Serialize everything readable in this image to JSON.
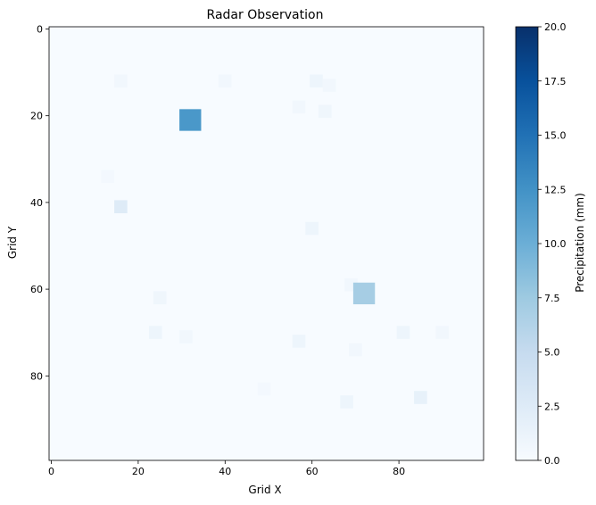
{
  "chart_data": {
    "type": "heatmap",
    "title": "Radar Observation",
    "xlabel": "Grid X",
    "ylabel": "Grid Y",
    "grid_size": [
      100,
      100
    ],
    "xlim": [
      0,
      100
    ],
    "ylim": [
      100,
      0
    ],
    "x_ticks": [
      0,
      20,
      40,
      60,
      80
    ],
    "y_ticks": [
      0,
      20,
      40,
      60,
      80
    ],
    "colormap": "Blues",
    "background_value": 0.0,
    "colorbar": {
      "label": "Precipitation (mm)",
      "vmin": 0.0,
      "vmax": 20.0,
      "ticks": [
        "0.0",
        "2.5",
        "5.0",
        "7.5",
        "10.0",
        "12.5",
        "15.0",
        "17.5",
        "20.0"
      ],
      "colors": [
        "#f7fbff",
        "#deebf7",
        "#c6dbef",
        "#9ecae1",
        "#6baed6",
        "#4292c6",
        "#2171b5",
        "#08519c",
        "#08306b"
      ]
    },
    "cells": [
      {
        "x": 15,
        "y": 11,
        "w": 3,
        "h": 3,
        "value": 0.6
      },
      {
        "x": 39,
        "y": 11,
        "w": 3,
        "h": 3,
        "value": 0.6
      },
      {
        "x": 60,
        "y": 11,
        "w": 3,
        "h": 3,
        "value": 1.0
      },
      {
        "x": 63,
        "y": 12,
        "w": 3,
        "h": 3,
        "value": 0.6
      },
      {
        "x": 56,
        "y": 17,
        "w": 3,
        "h": 3,
        "value": 0.6
      },
      {
        "x": 62,
        "y": 18,
        "w": 3,
        "h": 3,
        "value": 0.8
      },
      {
        "x": 30,
        "y": 19,
        "w": 5,
        "h": 5,
        "value": 12.0
      },
      {
        "x": 12,
        "y": 33,
        "w": 3,
        "h": 3,
        "value": 0.4
      },
      {
        "x": 15,
        "y": 40,
        "w": 3,
        "h": 3,
        "value": 2.5
      },
      {
        "x": 59,
        "y": 45,
        "w": 3,
        "h": 3,
        "value": 1.0
      },
      {
        "x": 68,
        "y": 58,
        "w": 3,
        "h": 3,
        "value": 0.6
      },
      {
        "x": 70,
        "y": 59,
        "w": 5,
        "h": 5,
        "value": 7.0
      },
      {
        "x": 24,
        "y": 61,
        "w": 3,
        "h": 3,
        "value": 0.8
      },
      {
        "x": 23,
        "y": 69,
        "w": 3,
        "h": 3,
        "value": 1.0
      },
      {
        "x": 30,
        "y": 70,
        "w": 3,
        "h": 3,
        "value": 0.6
      },
      {
        "x": 56,
        "y": 71,
        "w": 3,
        "h": 3,
        "value": 1.0
      },
      {
        "x": 80,
        "y": 69,
        "w": 3,
        "h": 3,
        "value": 1.0
      },
      {
        "x": 89,
        "y": 69,
        "w": 3,
        "h": 3,
        "value": 0.6
      },
      {
        "x": 69,
        "y": 73,
        "w": 3,
        "h": 3,
        "value": 0.6
      },
      {
        "x": 48,
        "y": 82,
        "w": 3,
        "h": 3,
        "value": 0.4
      },
      {
        "x": 67,
        "y": 85,
        "w": 3,
        "h": 3,
        "value": 1.0
      },
      {
        "x": 84,
        "y": 84,
        "w": 3,
        "h": 3,
        "value": 1.6
      }
    ]
  }
}
